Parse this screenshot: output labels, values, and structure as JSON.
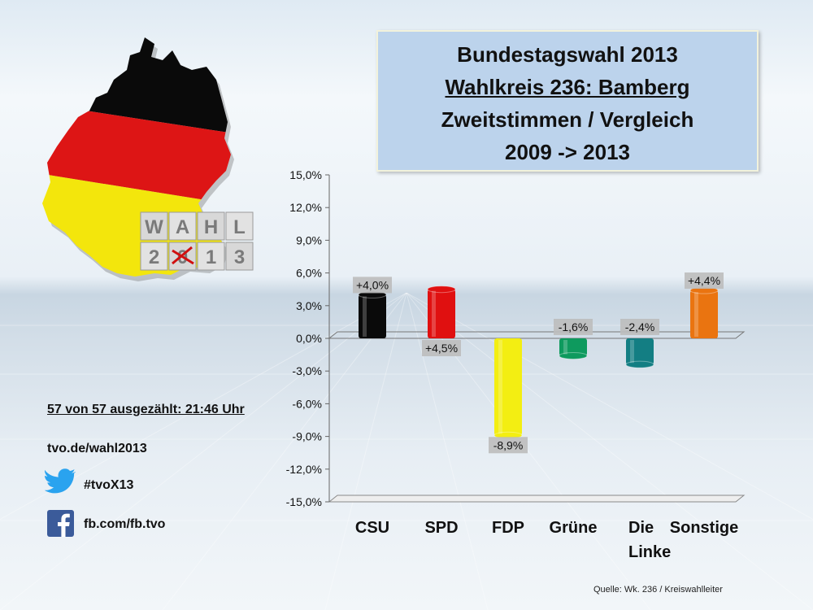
{
  "title": {
    "line1": "Bundestagswahl 2013",
    "line2": "Wahlkreis 236: Bamberg",
    "line3": "Zweitstimmen / Vergleich",
    "line4": "2009 -> 2013"
  },
  "logo": {
    "row1": [
      "W",
      "A",
      "H",
      "L"
    ],
    "row2": [
      "2",
      "0",
      "1",
      "3"
    ]
  },
  "info": {
    "status": "57 von 57 ausgezählt: 21:46 Uhr",
    "website": "tvo.de/wahl2013",
    "twitter": "#tvoX13",
    "facebook": "fb.com/fb.tvo"
  },
  "source": "Quelle: Wk. 236 / Kreiswahlleiter",
  "colors": {
    "title_bg": "#bcd3ec",
    "csu": "#0a0a0a",
    "spd": "#e01010",
    "fdp": "#f3ee12",
    "gruene": "#0e9a5e",
    "linke": "#137e83",
    "sonstige": "#ea7410"
  },
  "chart_data": {
    "type": "bar",
    "categories": [
      "CSU",
      "SPD",
      "FDP",
      "Grüne",
      "Die Linke",
      "Sonstige"
    ],
    "values": [
      4.0,
      4.5,
      -8.9,
      -1.6,
      -2.4,
      4.4
    ],
    "data_labels": [
      "+4,0%",
      "+4,5%",
      "-8,9%",
      "-1,6%",
      "-2,4%",
      "+4,4%"
    ],
    "colors": [
      "#0a0a0a",
      "#e01010",
      "#f3ee12",
      "#0e9a5e",
      "#137e83",
      "#ea7410"
    ],
    "ylim": [
      -15,
      15
    ],
    "yticks": [
      15,
      12,
      9,
      6,
      3,
      0,
      -3,
      -6,
      -9,
      -12,
      -15
    ],
    "ytick_labels": [
      "15,0%",
      "12,0%",
      "9,0%",
      "6,0%",
      "3,0%",
      "0,0%",
      "-3,0%",
      "-6,0%",
      "-9,0%",
      "-12,0%",
      "-15,0%"
    ],
    "xlabel": "",
    "ylabel": "",
    "grid": false
  }
}
